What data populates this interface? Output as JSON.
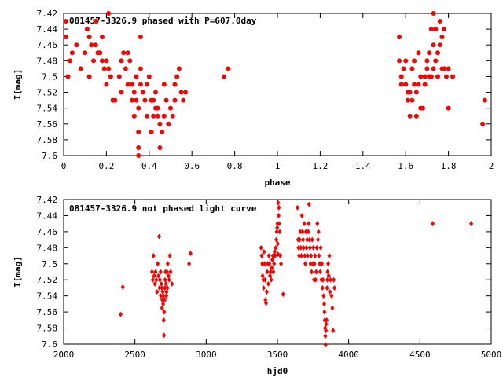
{
  "chart_data": [
    {
      "type": "scatter",
      "title": "081457-3326.9 phased with P=607.0day",
      "xlabel": "phase",
      "ylabel": "I[mag]",
      "xlim": [
        0,
        2
      ],
      "ylim": [
        7.6,
        7.42
      ],
      "y_reversed": true,
      "x_ticks": [
        "0",
        "0.2",
        "0.4",
        "0.6",
        "0.8",
        "1",
        "1.2",
        "1.4",
        "1.6",
        "1.8",
        "2"
      ],
      "y_ticks": [
        "7.42",
        "7.44",
        "7.46",
        "7.48",
        "7.5",
        "7.52",
        "7.54",
        "7.56",
        "7.58",
        "7.6"
      ],
      "grid": false,
      "legend": "none",
      "marker": "filled-circle",
      "color": "#ff0000",
      "points": [
        [
          0.01,
          7.43
        ],
        [
          0.01,
          7.45
        ],
        [
          0.02,
          7.5
        ],
        [
          0.03,
          7.48
        ],
        [
          0.04,
          7.47
        ],
        [
          0.06,
          7.46
        ],
        [
          0.08,
          7.49
        ],
        [
          0.1,
          7.47
        ],
        [
          0.11,
          7.44
        ],
        [
          0.12,
          7.45
        ],
        [
          0.12,
          7.5
        ],
        [
          0.13,
          7.46
        ],
        [
          0.14,
          7.48
        ],
        [
          0.15,
          7.46
        ],
        [
          0.15,
          7.43
        ],
        [
          0.16,
          7.47
        ],
        [
          0.17,
          7.47
        ],
        [
          0.18,
          7.48
        ],
        [
          0.18,
          7.45
        ],
        [
          0.19,
          7.49
        ],
        [
          0.2,
          7.48
        ],
        [
          0.2,
          7.51
        ],
        [
          0.21,
          7.42
        ],
        [
          0.21,
          7.49
        ],
        [
          0.22,
          7.5
        ],
        [
          0.23,
          7.53
        ],
        [
          0.24,
          7.53
        ],
        [
          0.26,
          7.5
        ],
        [
          0.27,
          7.52
        ],
        [
          0.27,
          7.48
        ],
        [
          0.28,
          7.47
        ],
        [
          0.29,
          7.49
        ],
        [
          0.3,
          7.51
        ],
        [
          0.3,
          7.47
        ],
        [
          0.31,
          7.48
        ],
        [
          0.32,
          7.51
        ],
        [
          0.32,
          7.53
        ],
        [
          0.33,
          7.52
        ],
        [
          0.33,
          7.55
        ],
        [
          0.34,
          7.5
        ],
        [
          0.34,
          7.53
        ],
        [
          0.35,
          7.54
        ],
        [
          0.35,
          7.57
        ],
        [
          0.35,
          7.59
        ],
        [
          0.35,
          7.6
        ],
        [
          0.36,
          7.51
        ],
        [
          0.36,
          7.49
        ],
        [
          0.36,
          7.45
        ],
        [
          0.37,
          7.52
        ],
        [
          0.38,
          7.53
        ],
        [
          0.39,
          7.51
        ],
        [
          0.39,
          7.55
        ],
        [
          0.4,
          7.5
        ],
        [
          0.41,
          7.53
        ],
        [
          0.41,
          7.57
        ],
        [
          0.42,
          7.55
        ],
        [
          0.42,
          7.53
        ],
        [
          0.43,
          7.54
        ],
        [
          0.43,
          7.52
        ],
        [
          0.44,
          7.55
        ],
        [
          0.44,
          7.54
        ],
        [
          0.45,
          7.56
        ],
        [
          0.45,
          7.59
        ],
        [
          0.46,
          7.57
        ],
        [
          0.47,
          7.55
        ],
        [
          0.47,
          7.51
        ],
        [
          0.48,
          7.53
        ],
        [
          0.49,
          7.56
        ],
        [
          0.5,
          7.54
        ],
        [
          0.51,
          7.55
        ],
        [
          0.52,
          7.53
        ],
        [
          0.52,
          7.51
        ],
        [
          0.53,
          7.5
        ],
        [
          0.54,
          7.49
        ],
        [
          0.55,
          7.52
        ],
        [
          0.56,
          7.53
        ],
        [
          0.57,
          7.52
        ],
        [
          0.75,
          7.5
        ],
        [
          0.77,
          7.49
        ],
        [
          1.57,
          7.45
        ],
        [
          1.57,
          7.48
        ],
        [
          1.58,
          7.5
        ],
        [
          1.58,
          7.51
        ],
        [
          1.59,
          7.49
        ],
        [
          1.6,
          7.48
        ],
        [
          1.6,
          7.51
        ],
        [
          1.61,
          7.52
        ],
        [
          1.61,
          7.53
        ],
        [
          1.62,
          7.55
        ],
        [
          1.62,
          7.52
        ],
        [
          1.63,
          7.49
        ],
        [
          1.63,
          7.53
        ],
        [
          1.64,
          7.51
        ],
        [
          1.64,
          7.48
        ],
        [
          1.65,
          7.52
        ],
        [
          1.65,
          7.55
        ],
        [
          1.66,
          7.51
        ],
        [
          1.66,
          7.47
        ],
        [
          1.67,
          7.5
        ],
        [
          1.67,
          7.54
        ],
        [
          1.68,
          7.54
        ],
        [
          1.69,
          7.51
        ],
        [
          1.69,
          7.5
        ],
        [
          1.7,
          7.49
        ],
        [
          1.7,
          7.48
        ],
        [
          1.71,
          7.5
        ],
        [
          1.71,
          7.47
        ],
        [
          1.72,
          7.44
        ],
        [
          1.72,
          7.5
        ],
        [
          1.73,
          7.42
        ],
        [
          1.73,
          7.46
        ],
        [
          1.73,
          7.49
        ],
        [
          1.74,
          7.44
        ],
        [
          1.74,
          7.48
        ],
        [
          1.75,
          7.47
        ],
        [
          1.75,
          7.5
        ],
        [
          1.76,
          7.43
        ],
        [
          1.76,
          7.46
        ],
        [
          1.77,
          7.45
        ],
        [
          1.77,
          7.49
        ],
        [
          1.78,
          7.44
        ],
        [
          1.78,
          7.49
        ],
        [
          1.79,
          7.5
        ],
        [
          1.8,
          7.49
        ],
        [
          1.8,
          7.54
        ],
        [
          1.82,
          7.5
        ],
        [
          1.96,
          7.56
        ],
        [
          1.97,
          7.53
        ]
      ]
    },
    {
      "type": "scatter",
      "title": "081457-3326.9 not phased light curve",
      "xlabel": "hjd0",
      "ylabel": "I[mag]",
      "xlim": [
        2000,
        5000
      ],
      "ylim": [
        7.6,
        7.42
      ],
      "y_reversed": true,
      "x_ticks": [
        "2000",
        "2500",
        "3000",
        "3500",
        "4000",
        "4500",
        "5000"
      ],
      "y_ticks": [
        "7.42",
        "7.44",
        "7.46",
        "7.48",
        "7.5",
        "7.52",
        "7.54",
        "7.56",
        "7.58",
        "7.6"
      ],
      "grid": false,
      "legend": "none",
      "marker": "diamond",
      "color": "#ff0000",
      "points": [
        [
          2400,
          7.563
        ],
        [
          2415,
          7.529
        ],
        [
          2620,
          7.51
        ],
        [
          2625,
          7.52
        ],
        [
          2630,
          7.49
        ],
        [
          2635,
          7.515
        ],
        [
          2640,
          7.525
        ],
        [
          2645,
          7.51
        ],
        [
          2650,
          7.52
        ],
        [
          2655,
          7.535
        ],
        [
          2660,
          7.5
        ],
        [
          2665,
          7.515
        ],
        [
          2670,
          7.466
        ],
        [
          2672,
          7.53
        ],
        [
          2675,
          7.52
        ],
        [
          2680,
          7.51
        ],
        [
          2682,
          7.54
        ],
        [
          2685,
          7.525
        ],
        [
          2688,
          7.53
        ],
        [
          2690,
          7.555
        ],
        [
          2692,
          7.545
        ],
        [
          2695,
          7.535
        ],
        [
          2698,
          7.55
        ],
        [
          2700,
          7.54
        ],
        [
          2702,
          7.57
        ],
        [
          2704,
          7.589
        ],
        [
          2705,
          7.56
        ],
        [
          2708,
          7.545
        ],
        [
          2710,
          7.53
        ],
        [
          2712,
          7.52
        ],
        [
          2715,
          7.51
        ],
        [
          2718,
          7.525
        ],
        [
          2720,
          7.54
        ],
        [
          2722,
          7.535
        ],
        [
          2725,
          7.51
        ],
        [
          2728,
          7.53
        ],
        [
          2730,
          7.5
        ],
        [
          2735,
          7.515
        ],
        [
          2740,
          7.52
        ],
        [
          2745,
          7.49
        ],
        [
          2750,
          7.51
        ],
        [
          2760,
          7.525
        ],
        [
          2880,
          7.5
        ],
        [
          2890,
          7.487
        ],
        [
          3385,
          7.48
        ],
        [
          3390,
          7.49
        ],
        [
          3393,
          7.5
        ],
        [
          3396,
          7.515
        ],
        [
          3400,
          7.52
        ],
        [
          3403,
          7.53
        ],
        [
          3406,
          7.485
        ],
        [
          3410,
          7.5
        ],
        [
          3413,
          7.52
        ],
        [
          3416,
          7.545
        ],
        [
          3420,
          7.549
        ],
        [
          3425,
          7.535
        ],
        [
          3428,
          7.51
        ],
        [
          3432,
          7.5
        ],
        [
          3436,
          7.525
        ],
        [
          3440,
          7.49
        ],
        [
          3444,
          7.5
        ],
        [
          3448,
          7.515
        ],
        [
          3452,
          7.51
        ],
        [
          3456,
          7.52
        ],
        [
          3460,
          7.505
        ],
        [
          3464,
          7.495
        ],
        [
          3468,
          7.49
        ],
        [
          3472,
          7.51
        ],
        [
          3476,
          7.5
        ],
        [
          3480,
          7.485
        ],
        [
          3484,
          7.49
        ],
        [
          3488,
          7.48
        ],
        [
          3492,
          7.47
        ],
        [
          3495,
          7.46
        ],
        [
          3498,
          7.455
        ],
        [
          3500,
          7.45
        ],
        [
          3502,
          7.475
        ],
        [
          3504,
          7.488
        ],
        [
          3505,
          7.424
        ],
        [
          3508,
          7.44
        ],
        [
          3510,
          7.43
        ],
        [
          3512,
          7.45
        ],
        [
          3516,
          7.46
        ],
        [
          3520,
          7.49
        ],
        [
          3525,
          7.5
        ],
        [
          3540,
          7.538
        ],
        [
          3640,
          7.43
        ],
        [
          3645,
          7.47
        ],
        [
          3648,
          7.48
        ],
        [
          3652,
          7.49
        ],
        [
          3656,
          7.47
        ],
        [
          3660,
          7.46
        ],
        [
          3664,
          7.48
        ],
        [
          3668,
          7.49
        ],
        [
          3672,
          7.44
        ],
        [
          3676,
          7.46
        ],
        [
          3680,
          7.47
        ],
        [
          3684,
          7.48
        ],
        [
          3688,
          7.45
        ],
        [
          3692,
          7.49
        ],
        [
          3696,
          7.5
        ],
        [
          3700,
          7.46
        ],
        [
          3704,
          7.48
        ],
        [
          3708,
          7.47
        ],
        [
          3712,
          7.49
        ],
        [
          3716,
          7.46
        ],
        [
          3720,
          7.45
        ],
        [
          3722,
          7.426
        ],
        [
          3725,
          7.47
        ],
        [
          3728,
          7.48
        ],
        [
          3732,
          7.5
        ],
        [
          3736,
          7.49
        ],
        [
          3740,
          7.51
        ],
        [
          3744,
          7.47
        ],
        [
          3748,
          7.5
        ],
        [
          3752,
          7.48
        ],
        [
          3756,
          7.52
        ],
        [
          3760,
          7.5
        ],
        [
          3764,
          7.49
        ],
        [
          3768,
          7.52
        ],
        [
          3772,
          7.51
        ],
        [
          3776,
          7.48
        ],
        [
          3780,
          7.45
        ],
        [
          3784,
          7.47
        ],
        [
          3788,
          7.46
        ],
        [
          3792,
          7.49
        ],
        [
          3796,
          7.5
        ],
        [
          3800,
          7.51
        ],
        [
          3804,
          7.48
        ],
        [
          3808,
          7.52
        ],
        [
          3812,
          7.5
        ],
        [
          3816,
          7.53
        ],
        [
          3820,
          7.52
        ],
        [
          3824,
          7.54
        ],
        [
          3828,
          7.55
        ],
        [
          3830,
          7.56
        ],
        [
          3832,
          7.57
        ],
        [
          3834,
          7.58
        ],
        [
          3836,
          7.59
        ],
        [
          3838,
          7.601
        ],
        [
          3840,
          7.583
        ],
        [
          3842,
          7.575
        ],
        [
          3845,
          7.57
        ],
        [
          3848,
          7.53
        ],
        [
          3850,
          7.52
        ],
        [
          3852,
          7.51
        ],
        [
          3856,
          7.5
        ],
        [
          3860,
          7.515
        ],
        [
          3864,
          7.49
        ],
        [
          3868,
          7.535
        ],
        [
          3872,
          7.52
        ],
        [
          3880,
          7.54
        ],
        [
          3885,
          7.555
        ],
        [
          3890,
          7.583
        ],
        [
          3895,
          7.52
        ],
        [
          3900,
          7.53
        ],
        [
          4590,
          7.45
        ],
        [
          4860,
          7.45
        ]
      ]
    }
  ]
}
